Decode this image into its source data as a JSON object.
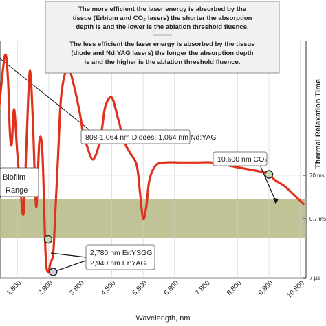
{
  "chart_data": {
    "type": "line",
    "title": "",
    "xlabel": "Wavelength, nm",
    "ylabel_right": "Thermal Relaxation Time",
    "xlim": [
      1200,
      11000
    ],
    "x_ticks": [
      "1,800",
      "2,800",
      "3,800",
      "4,800",
      "5,800",
      "6,800",
      "7,800",
      "8,800",
      "9,800",
      "10,800"
    ],
    "x_tick_values": [
      1800,
      2800,
      3800,
      4800,
      5800,
      6800,
      7800,
      8800,
      9800,
      10800
    ],
    "right_ticks": [
      "70 ms",
      "0.7 ms",
      "7 μs"
    ],
    "band_label": [
      "Biofilm",
      "Range"
    ],
    "series": [
      {
        "color": "#e0311c",
        "x": [
          1200,
          1400,
          1500,
          1560,
          1620,
          1700,
          1800,
          1900,
          2000,
          2100,
          2200,
          2300,
          2400,
          2500,
          2600,
          2700,
          2780,
          2850,
          2940,
          3000,
          3100,
          3200,
          3400,
          3600,
          3800,
          3900,
          4000,
          4200,
          4400,
          4500,
          4600,
          4800,
          5000,
          5200,
          5400,
          5600,
          5700,
          5800,
          5900,
          6000,
          6200,
          6500,
          7000,
          7500,
          8000,
          8500,
          9000,
          9500,
          9800,
          10000,
          10300,
          10600,
          10900
        ],
        "y": [
          55,
          75,
          68,
          50,
          45,
          57,
          42,
          30,
          22,
          48,
          70,
          52,
          24,
          46,
          42,
          8,
          2,
          5,
          8,
          20,
          42,
          62,
          71,
          65,
          55,
          48,
          45,
          40,
          45,
          51,
          58,
          61,
          54,
          46,
          42,
          38,
          29,
          20,
          24,
          33,
          38,
          39,
          39,
          39,
          39,
          38,
          37,
          36,
          35,
          33,
          31,
          28,
          25
        ]
      }
    ],
    "annotations": [
      {
        "text": "808-1,064 nm Diodes; 1,064 nm Nd:YAG"
      },
      {
        "text": "10,600 nm CO₂",
        "x": 9800,
        "y": 35
      },
      {
        "text": "2,780 nm Er:YSGG",
        "x": 2780,
        "y": 13
      },
      {
        "text": "2,940 nm Er:YAG",
        "x": 2940,
        "y": 2
      }
    ]
  },
  "infobox": {
    "para1": [
      "The more efficient the laser energy is absorbed by the",
      "tissue (Erbium and CO₂ lasers) the shorter the absorption",
      "depth is and the lower is the ablation threshold fluence."
    ],
    "para2": [
      "The less efficient the laser energy is absorbed by the tissue",
      "(diode and Nd:YAG lasers) the longer the absorption depth",
      "is and the higher is the ablation threshold fluence."
    ]
  },
  "colors": {
    "curve": "#e0311c",
    "band": "#b4b983",
    "marker_fill": "#c8d8b0",
    "marker_fill_2": "#c9cde0"
  }
}
